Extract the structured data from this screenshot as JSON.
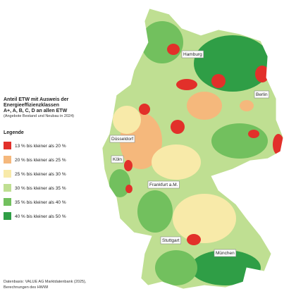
{
  "title": {
    "line1": "Anteil ETW mit Ausweis der",
    "line2": "Energieeffizienzklassen",
    "line3": "A+, A, B, C, D an allen ETW",
    "subtitle": "(Angebote Bestand und Neubau in 2024)"
  },
  "legend": {
    "title": "Legende",
    "items": [
      {
        "label": "13 % bis kleiner als 20 %",
        "color": "#e2302a"
      },
      {
        "label": "20 % bis kleiner als 25 %",
        "color": "#f5b87c"
      },
      {
        "label": "25 % bis kleiner als 30 %",
        "color": "#f8eaa9"
      },
      {
        "label": "30 % bis kleiner als 35 %",
        "color": "#bfdf92"
      },
      {
        "label": "35 % bis kleiner als 40 %",
        "color": "#72c05e"
      },
      {
        "label": "40 % bis kleiner als 50 %",
        "color": "#2f9e46"
      }
    ]
  },
  "cities": [
    "Hamburg",
    "Berlin",
    "Düsseldorf",
    "Köln",
    "Frankfurt a.M.",
    "Stuttgart",
    "München"
  ],
  "source": {
    "line1": "Datenbasis: VALUE AG Marktdatenbank (2025),",
    "line2": "Berechnungen des HWWI"
  }
}
